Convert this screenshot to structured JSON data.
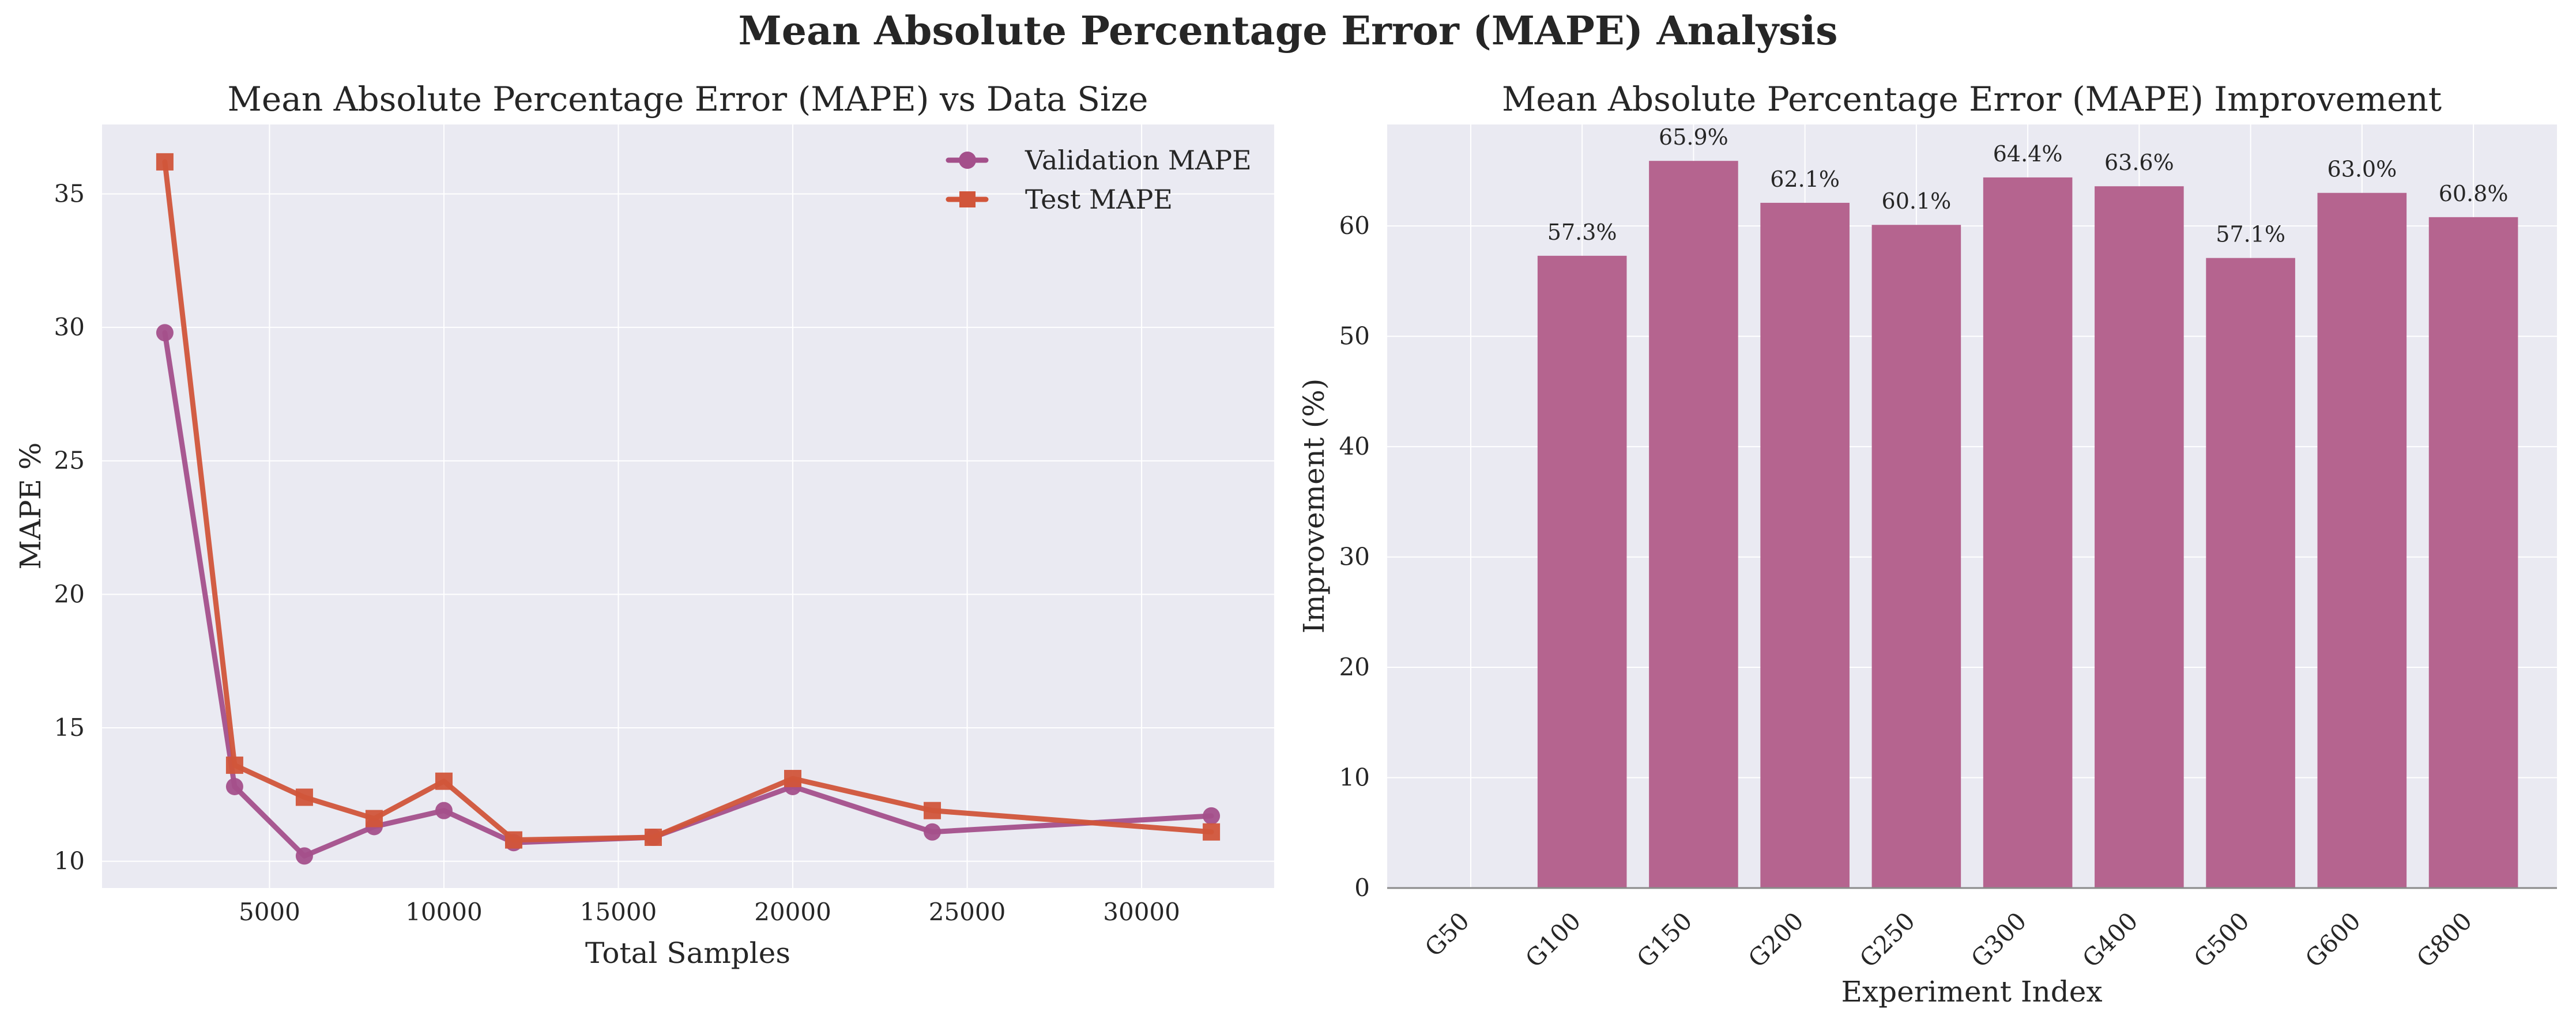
{
  "figure": {
    "suptitle": "Mean Absolute Percentage Error (MAPE) Analysis"
  },
  "colors": {
    "validation": "#A4508B",
    "test": "#D1553A",
    "bar": "#B5648F",
    "axes_bg": "#EAEAF2",
    "grid": "#FFFFFF"
  },
  "chart_data": [
    {
      "type": "line",
      "title": "Mean Absolute Percentage Error (MAPE) vs Data Size",
      "xlabel": "Total Samples",
      "ylabel": "MAPE %",
      "xlim": [
        200,
        33800
      ],
      "ylim": [
        9.0,
        37.6
      ],
      "xticks": [
        5000,
        10000,
        15000,
        20000,
        25000,
        30000
      ],
      "yticks": [
        10,
        15,
        20,
        25,
        30,
        35
      ],
      "legend_position": "upper right",
      "grid": true,
      "series": [
        {
          "name": "Validation MAPE",
          "marker": "circle",
          "x": [
            2000,
            4000,
            6000,
            8000,
            10000,
            12000,
            16000,
            20000,
            24000,
            32000
          ],
          "y": [
            29.8,
            12.8,
            10.2,
            11.3,
            11.9,
            10.7,
            10.9,
            12.8,
            11.1,
            11.7
          ]
        },
        {
          "name": "Test MAPE",
          "marker": "square",
          "x": [
            2000,
            4000,
            6000,
            8000,
            10000,
            12000,
            16000,
            20000,
            24000,
            32000
          ],
          "y": [
            36.2,
            13.6,
            12.4,
            11.6,
            13.0,
            10.8,
            10.9,
            13.1,
            11.9,
            11.1
          ]
        }
      ]
    },
    {
      "type": "bar",
      "title": "Mean Absolute Percentage Error (MAPE) Improvement",
      "xlabel": "Experiment Index",
      "ylabel": "Improvement (%)",
      "ylim": [
        0,
        69.2
      ],
      "yticks": [
        0,
        10,
        20,
        30,
        40,
        50,
        60
      ],
      "grid": true,
      "categories": [
        "G50",
        "G100",
        "G150",
        "G200",
        "G250",
        "G300",
        "G400",
        "G500",
        "G600",
        "G800"
      ],
      "values": [
        0,
        57.3,
        65.9,
        62.1,
        60.1,
        64.4,
        63.6,
        57.1,
        63.0,
        60.8
      ],
      "value_labels": [
        "",
        "57.3%",
        "65.9%",
        "62.1%",
        "60.1%",
        "64.4%",
        "63.6%",
        "57.1%",
        "63.0%",
        "60.8%"
      ]
    }
  ]
}
